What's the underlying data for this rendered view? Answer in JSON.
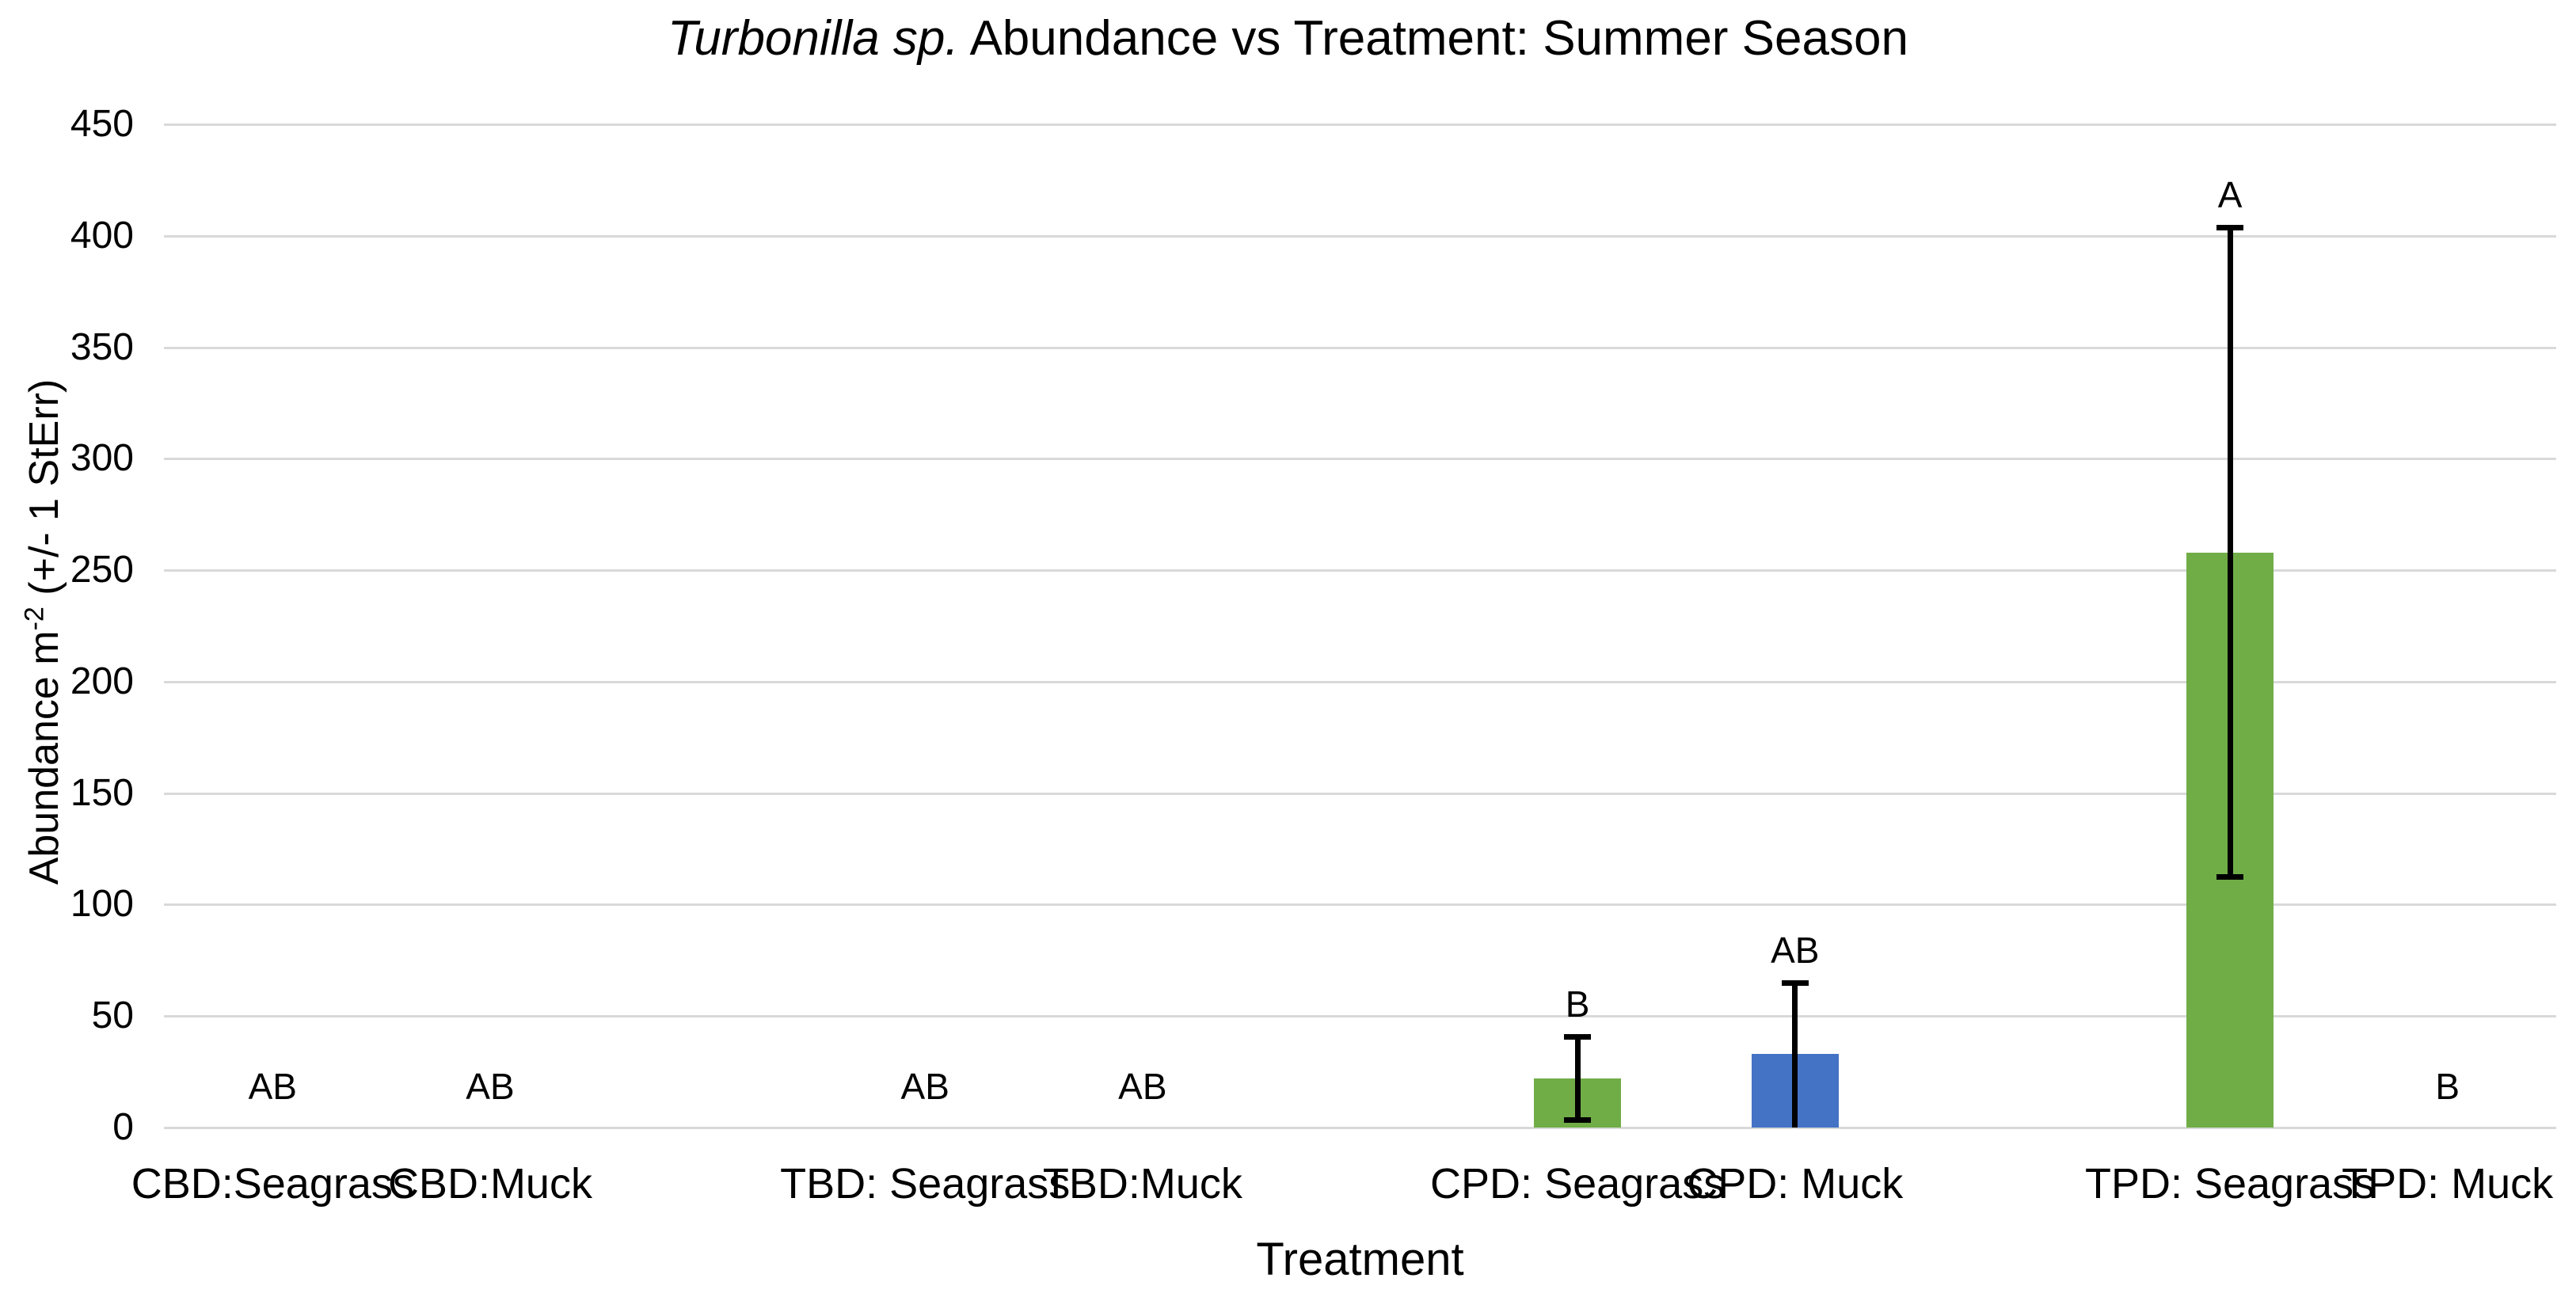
{
  "title": {
    "italic": "Turbonilla sp.",
    "rest": " Abundance vs Treatment: Summer Season"
  },
  "axes": {
    "x_title": "Treatment",
    "y_title_pre": "Abundance m",
    "y_title_sup": "-2",
    "y_title_post": " (+/- 1 StErr)"
  },
  "chart_data": {
    "type": "bar",
    "title": "Turbonilla sp. Abundance vs Treatment: Summer Season",
    "xlabel": "Treatment",
    "ylabel": "Abundance m-2 (+/- 1 StErr)",
    "ylim": [
      0,
      450
    ],
    "yticks": [
      0,
      50,
      100,
      150,
      200,
      250,
      300,
      350,
      400,
      450
    ],
    "grid": "horizontal-only",
    "legend": "none",
    "slot_count": 11,
    "categories": [
      {
        "label": "CBD:Seagrass",
        "slot": 0,
        "value": 0,
        "err": null,
        "letter": "AB",
        "color": "#70AD47"
      },
      {
        "label": "CBD:Muck",
        "slot": 1,
        "value": 0,
        "err": null,
        "letter": "AB",
        "color": "#4472C4"
      },
      {
        "label": "TBD: Seagrass",
        "slot": 3,
        "value": 0,
        "err": null,
        "letter": "AB",
        "color": "#70AD47"
      },
      {
        "label": "TBD:Muck",
        "slot": 4,
        "value": 0,
        "err": null,
        "letter": "AB",
        "color": "#4472C4"
      },
      {
        "label": "CPD: Seagrass",
        "slot": 6,
        "value": 22,
        "err": 20,
        "letter": "B",
        "color": "#70AD47"
      },
      {
        "label": "CPD: Muck",
        "slot": 7,
        "value": 33,
        "err": 33,
        "letter": "AB",
        "color": "#4472C4"
      },
      {
        "label": "TPD: Seagrass",
        "slot": 9,
        "value": 258,
        "err": 147,
        "letter": "A",
        "color": "#70AD47"
      },
      {
        "label": "TPD: Muck",
        "slot": 10,
        "value": 0,
        "err": null,
        "letter": "B",
        "color": "#4472C4"
      }
    ],
    "colors": {
      "seagrass_bar": "#70AD47",
      "muck_bar": "#4472C4",
      "gridline": "#D9D9D9",
      "error_bar": "#000000",
      "text": "#000000"
    }
  }
}
